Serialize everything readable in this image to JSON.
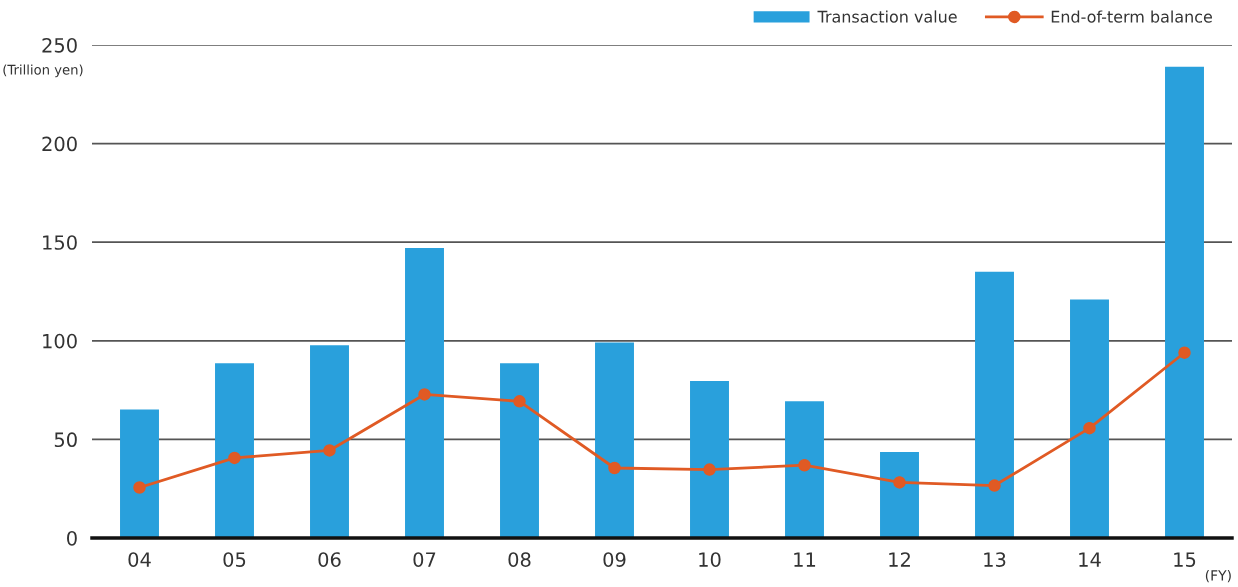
{
  "chart_data": {
    "type": "bar",
    "categories": [
      "04",
      "05",
      "06",
      "07",
      "08",
      "09",
      "10",
      "11",
      "12",
      "13",
      "14",
      "15"
    ],
    "series": [
      {
        "name": "Transaction value",
        "color": "#29a0dc",
        "values": [
          65.1,
          88.6,
          97.7,
          147,
          88.6,
          99.1,
          79.6,
          69.3,
          43.6,
          135,
          121,
          239
        ]
      },
      {
        "name": "End-of-term balance",
        "type": "line",
        "color": "#e05a24",
        "values": [
          25.6,
          40.6,
          44.4,
          72.8,
          69.3,
          35.5,
          34.7,
          36.9,
          28.2,
          26.6,
          55.7,
          94.0
        ]
      }
    ],
    "ylabel": "(Trillion yen)",
    "xlabel": "(FY)",
    "ylim": [
      0,
      250
    ],
    "yticks": [
      0,
      50,
      100,
      150,
      200,
      250
    ],
    "grid": "y",
    "legend": "top right",
    "marker": "circle",
    "line_style": "solid"
  }
}
